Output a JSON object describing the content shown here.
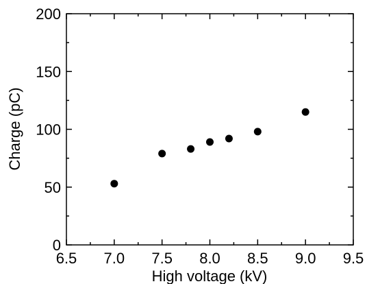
{
  "chart_data": {
    "type": "scatter",
    "xlabel": "High voltage (kV)",
    "ylabel": "Charge (pC)",
    "xlim": [
      6.5,
      9.5
    ],
    "ylim": [
      0,
      200
    ],
    "x_ticks": [
      "6.5",
      "7.0",
      "7.5",
      "8.0",
      "8.5",
      "9.0",
      "9.5"
    ],
    "y_ticks": [
      "0",
      "50",
      "100",
      "150",
      "200"
    ],
    "x": [
      7.0,
      7.5,
      7.8,
      8.0,
      8.2,
      8.5,
      9.0
    ],
    "y": [
      53,
      79,
      83,
      89,
      92,
      98,
      115
    ],
    "marker": "filled-circle",
    "marker_color": "#000000",
    "grid": false,
    "legend": "none"
  }
}
